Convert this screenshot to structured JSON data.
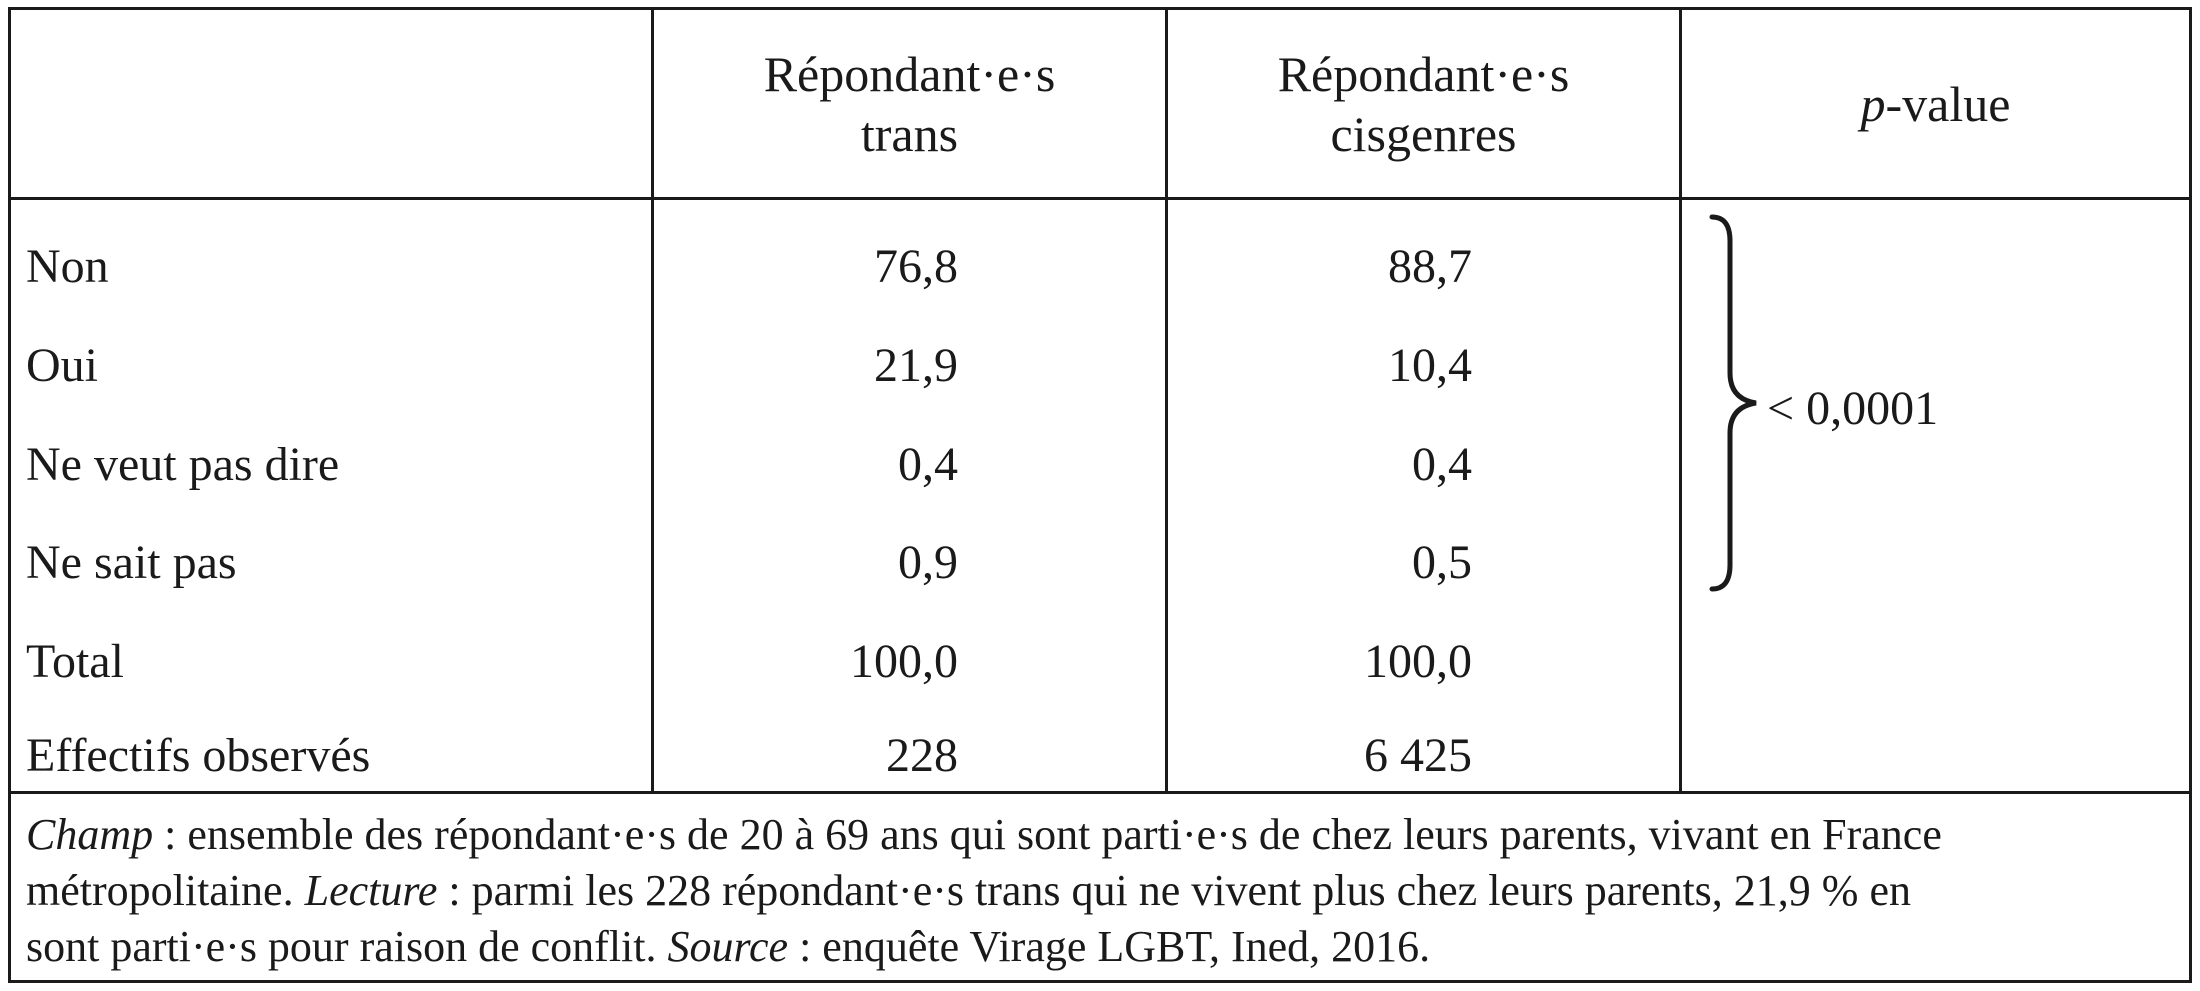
{
  "table": {
    "headers": {
      "col1_line1": "Répondant·e·s",
      "col1_line2": "trans",
      "col2_line1": "Répondant·e·s",
      "col2_line2": "cisgenres",
      "col3_prefix": "p",
      "col3_suffix": "-value"
    },
    "rows": [
      {
        "label": "Non",
        "trans": "76,8",
        "cis": "88,7"
      },
      {
        "label": "Oui",
        "trans": "21,9",
        "cis": "10,4"
      },
      {
        "label": "Ne veut pas dire",
        "trans": "0,4",
        "cis": "0,4"
      },
      {
        "label": "Ne sait pas",
        "trans": "0,9",
        "cis": "0,5"
      },
      {
        "label": "Total",
        "trans": "100,0",
        "cis": "100,0"
      },
      {
        "label": "Effectifs observés",
        "trans": "228",
        "cis": "6 425"
      }
    ],
    "p_value": "< 0,0001"
  },
  "note": {
    "champ_label": "Champ",
    "champ_text_a": " : ensemble des répondant·e·s de 20 à 69 ans qui sont parti·e·s de chez leurs parents, vivant en France",
    "champ_text_b": "métropolitaine. ",
    "lecture_label": "Lecture",
    "lecture_text_a": " : parmi les 228 répondant·e·s trans qui ne vivent plus chez leurs parents, 21,9 % en",
    "lecture_text_b": "sont parti·e·s pour raison de conflit. ",
    "source_label": "Source",
    "source_text": " : enquête Virage LGBT, Ined, 2016."
  }
}
